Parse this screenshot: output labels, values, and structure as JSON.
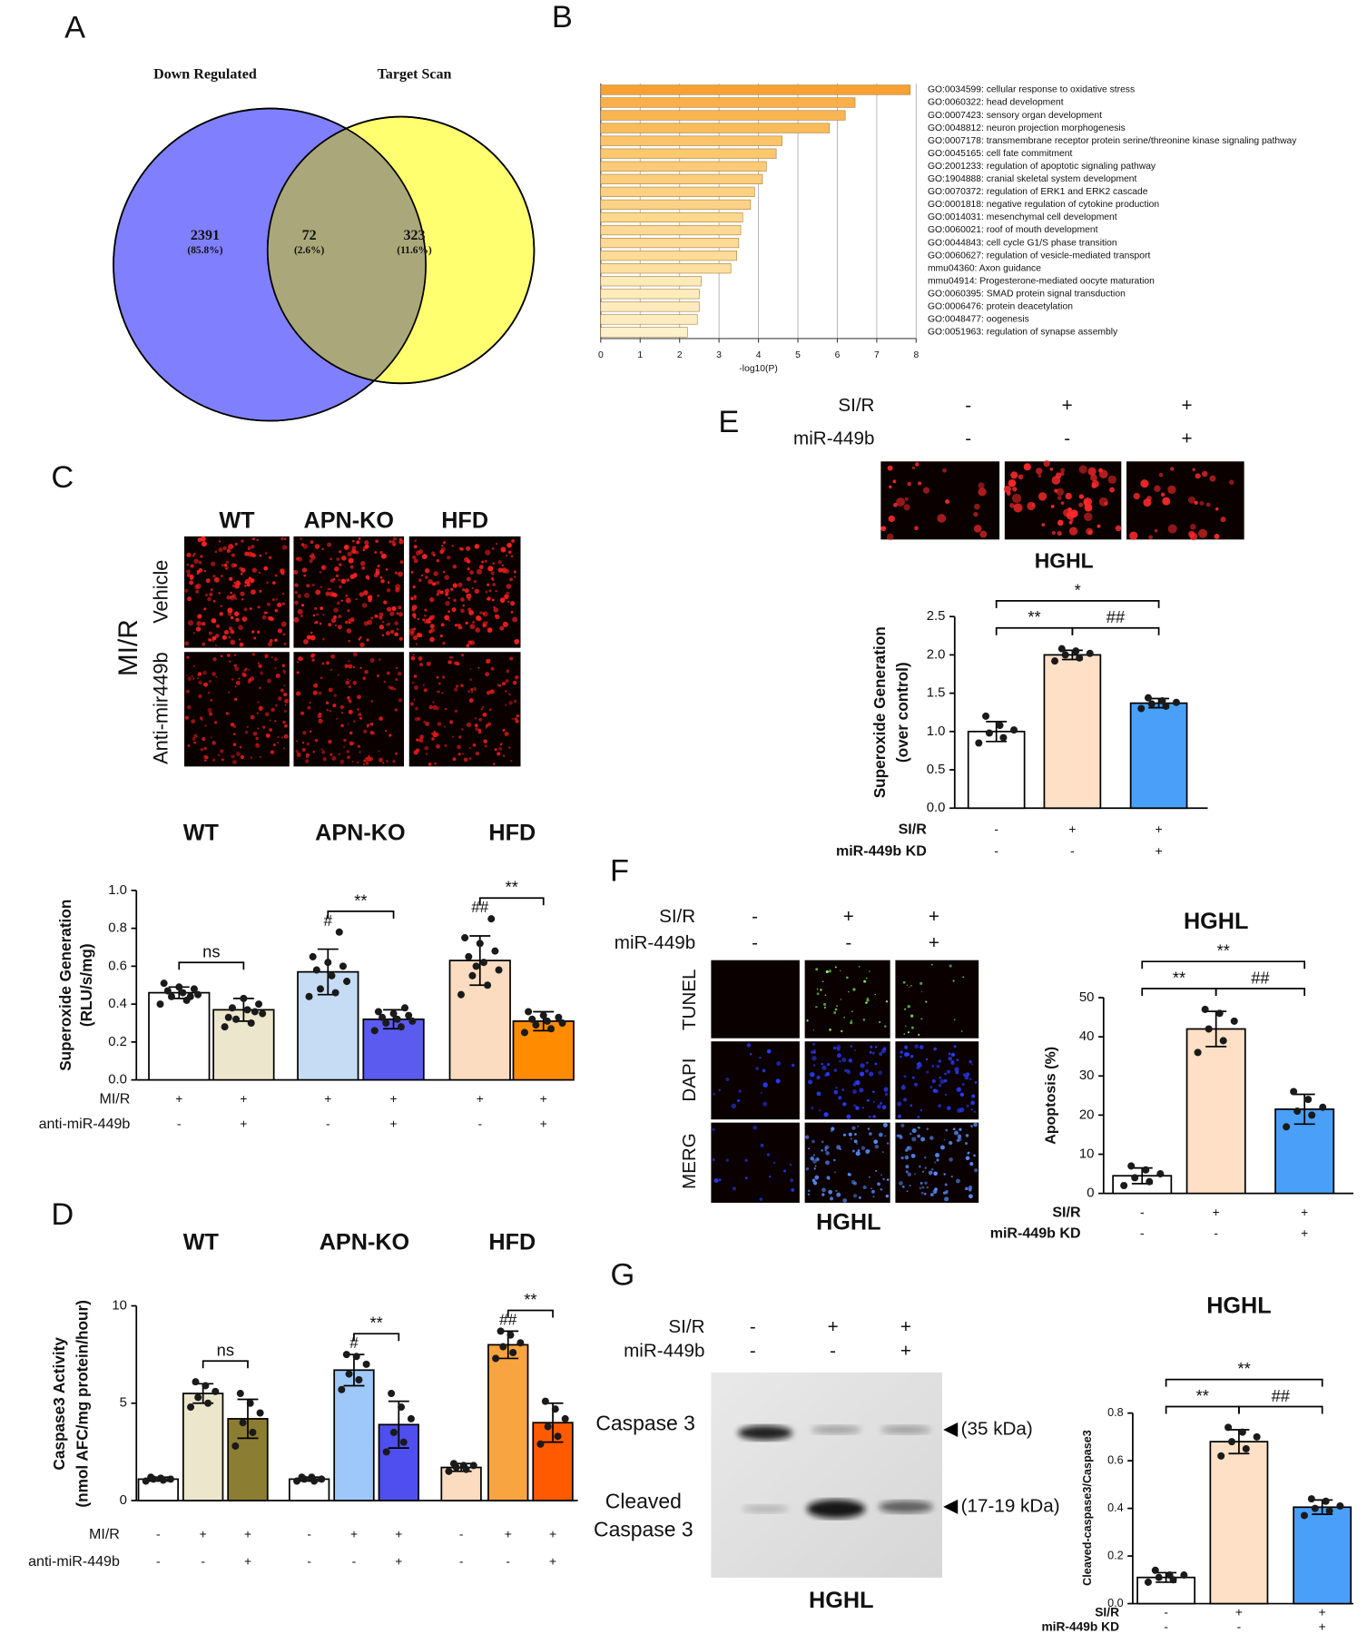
{
  "panel_labels": [
    "A",
    "B",
    "C",
    "D",
    "E",
    "F",
    "G"
  ],
  "chart_data": [
    {
      "type": "venn",
      "sets": [
        {
          "name": "Down Regulated",
          "color": "#8080ff"
        },
        {
          "name": "Target Scan",
          "color": "#ffff70"
        }
      ],
      "intersection_color": "#aaa77a",
      "counts": [
        2391,
        72,
        323
      ],
      "percents": [
        85.8,
        2.6,
        11.6
      ],
      "percent_labels": [
        "(85.8%)",
        "(2.6%)",
        "(11.6%)"
      ]
    },
    {
      "type": "barh",
      "xlabel": "-log10(P)",
      "categories": [
        "GO:0034599: cellular response to oxidative stress",
        "GO:0060322: head development",
        "GO:0007423: sensory organ development",
        "GO:0048812: neuron projection morphogenesis",
        "GO:0007178: transmembrane receptor protein serine/threonine kinase signaling pathway",
        "GO:0045165: cell fate commitment",
        "GO:2001233: regulation of apoptotic signaling pathway",
        "GO:1904888: cranial skeletal system development",
        "GO:0070372: regulation of ERK1 and ERK2 cascade",
        "GO:0001818: negative regulation of cytokine production",
        "GO:0014031: mesenchymal cell development",
        "GO:0060021: roof of mouth development",
        "GO:0044843: cell cycle G1/S phase transition",
        "GO:0060627: regulation of vesicle-mediated transport",
        "mmu04360: Axon guidance",
        "mmu04914: Progesterone-mediated oocyte maturation",
        "GO:0060395: SMAD protein signal transduction",
        "GO:0006476: protein deacetylation",
        "GO:0048477: oogenesis",
        "GO:0051963: regulation of synapse assembly"
      ],
      "values": [
        7.85,
        6.45,
        6.2,
        5.8,
        4.6,
        4.45,
        4.2,
        4.1,
        3.9,
        3.8,
        3.6,
        3.55,
        3.5,
        3.45,
        3.3,
        2.55,
        2.5,
        2.5,
        2.45,
        2.2
      ],
      "colors": [
        "#f7a034",
        "#f9b04a",
        "#f9b552",
        "#fabb5c",
        "#fbc46a",
        "#fbc76f",
        "#fbcb77",
        "#fccd7b",
        "#fcd182",
        "#fcd386",
        "#fdd88f",
        "#fdd993",
        "#fdda96",
        "#fddc99",
        "#fde09f",
        "#fee9b8",
        "#feebbc",
        "#feebbd",
        "#feecc0",
        "#fff1cc"
      ],
      "xlim": [
        0,
        8
      ],
      "xticks": [
        0,
        1,
        2,
        3,
        4,
        5,
        6,
        7,
        8
      ],
      "grid": true
    },
    {
      "type": "bar",
      "groups": [
        "WT",
        "APN-KO",
        "HFD"
      ],
      "ylabel": [
        "Superoxide Generation",
        "(RLU/s/mg)"
      ],
      "values": [
        0.46,
        0.37,
        0.57,
        0.32,
        0.63,
        0.31
      ],
      "errors": [
        0.03,
        0.06,
        0.12,
        0.05,
        0.13,
        0.05
      ],
      "colors": [
        "#ffffff",
        "#ece6cc",
        "#c6dcf5",
        "#5b5bef",
        "#fbdcc0",
        "#ff8c00"
      ],
      "points": [
        [
          0.4,
          0.42,
          0.44,
          0.45,
          0.46,
          0.47,
          0.48,
          0.49,
          0.51,
          0.44
        ],
        [
          0.28,
          0.3,
          0.32,
          0.35,
          0.37,
          0.38,
          0.4,
          0.43,
          0.33,
          0.36
        ],
        [
          0.44,
          0.46,
          0.48,
          0.52,
          0.55,
          0.58,
          0.6,
          0.62,
          0.65,
          0.78
        ],
        [
          0.26,
          0.28,
          0.3,
          0.31,
          0.32,
          0.33,
          0.34,
          0.35,
          0.36,
          0.38
        ],
        [
          0.45,
          0.5,
          0.55,
          0.58,
          0.62,
          0.65,
          0.68,
          0.72,
          0.75,
          0.85,
          0.6
        ],
        [
          0.25,
          0.27,
          0.29,
          0.3,
          0.31,
          0.32,
          0.33,
          0.34,
          0.36
        ]
      ],
      "bar_marks": [
        null,
        null,
        "#",
        null,
        "##",
        null
      ],
      "annotations": [
        {
          "text": "ns",
          "from": 0,
          "to": 1
        },
        {
          "text": "**",
          "from": 2,
          "to": 3
        },
        {
          "text": "**",
          "from": 4,
          "to": 5
        }
      ],
      "conditions": [
        {
          "name": "MI/R",
          "marks": [
            "+",
            "+",
            "+",
            "+",
            "+",
            "+"
          ]
        },
        {
          "name": "anti-miR-449b",
          "marks": [
            "-",
            "+",
            "-",
            "+",
            "-",
            "+"
          ]
        }
      ],
      "ylim": [
        0,
        1
      ],
      "yticks": [
        {
          "value": 0,
          "label": "0.0"
        },
        0.2,
        0.4,
        0.6,
        0.8,
        {
          "value": 1,
          "label": "1.0"
        }
      ]
    },
    {
      "type": "bar",
      "groups": [
        "WT",
        "APN-KO",
        "HFD"
      ],
      "ylabel": [
        "Caspase3 Activity",
        "(nmol AFC/mg protein/hour)"
      ],
      "values": [
        1.1,
        5.5,
        4.2,
        1.1,
        6.7,
        3.9,
        1.7,
        8.0,
        4.0
      ],
      "errors": [
        0.1,
        0.5,
        1.0,
        0.1,
        0.8,
        1.2,
        0.2,
        0.7,
        1.0
      ],
      "colors": [
        "#ffffff",
        "#ece6cc",
        "#8b7d32",
        "#ffffff",
        "#9ec8fa",
        "#4f4fef",
        "#fbdcc0",
        "#f8a440",
        "#ff5a00"
      ],
      "points": [
        [
          1.0,
          1.05,
          1.1,
          1.1,
          1.15,
          1.2
        ],
        [
          4.8,
          5.0,
          5.3,
          5.6,
          5.9,
          6.1
        ],
        [
          2.8,
          3.5,
          4.0,
          4.5,
          5.0,
          5.5
        ],
        [
          1.0,
          1.0,
          1.1,
          1.1,
          1.2,
          1.2
        ],
        [
          5.7,
          6.2,
          6.5,
          7.0,
          7.4,
          7.5
        ],
        [
          2.5,
          3.0,
          3.5,
          4.2,
          4.8,
          5.5
        ],
        [
          1.5,
          1.6,
          1.7,
          1.8,
          1.8,
          1.9
        ],
        [
          7.3,
          7.6,
          7.9,
          8.1,
          8.5,
          8.7
        ],
        [
          2.9,
          3.3,
          3.8,
          4.2,
          4.7,
          5.1
        ]
      ],
      "bar_marks": [
        null,
        null,
        null,
        null,
        "#",
        null,
        null,
        "##",
        null
      ],
      "annotations": [
        {
          "text": "ns",
          "from": 1,
          "to": 2
        },
        {
          "text": "**",
          "from": 4,
          "to": 5
        },
        {
          "text": "**",
          "from": 7,
          "to": 8
        }
      ],
      "conditions": [
        {
          "name": "MI/R",
          "marks": [
            "-",
            "+",
            "+",
            "-",
            "+",
            "+",
            "-",
            "+",
            "+"
          ]
        },
        {
          "name": "anti-miR-449b",
          "marks": [
            "-",
            "-",
            "+",
            "-",
            "-",
            "+",
            "-",
            "-",
            "+"
          ]
        }
      ],
      "ylim": [
        0,
        10
      ],
      "yticks": [
        0,
        5,
        10
      ]
    },
    {
      "type": "bar",
      "ylabel": [
        "Superoxide Generation",
        "(over control)"
      ],
      "values": [
        1.0,
        2.0,
        1.37
      ],
      "errors": [
        0.13,
        0.06,
        0.06
      ],
      "colors": [
        "#ffffff",
        "#fde0c5",
        "#4aa0f8"
      ],
      "points": [
        [
          0.85,
          0.92,
          0.98,
          1.02,
          1.08,
          1.2
        ],
        [
          1.92,
          1.96,
          2.0,
          2.02,
          2.05,
          2.08
        ],
        [
          1.3,
          1.33,
          1.36,
          1.38,
          1.4,
          1.44
        ]
      ],
      "annotations": [
        {
          "text": "**",
          "from": 0,
          "to": 1
        },
        {
          "text": "##",
          "from": 1,
          "to": 2
        },
        {
          "text": "*",
          "from": 0,
          "to": 2
        }
      ],
      "conditions": [
        {
          "name": "SI/R",
          "marks": [
            "-",
            "+",
            "+"
          ]
        },
        {
          "name": "miR-449b KD",
          "marks": [
            "-",
            "-",
            "+"
          ]
        }
      ],
      "ylim": [
        0,
        2.5
      ],
      "yticks": [
        {
          "value": 0,
          "label": "0.0"
        },
        0.5,
        {
          "value": 1,
          "label": "1.0"
        },
        1.5,
        {
          "value": 2,
          "label": "2.0"
        },
        2.5
      ]
    },
    {
      "type": "bar",
      "title": "HGHL",
      "ylabel": [
        "Apoptosis (%)"
      ],
      "values": [
        4.5,
        42,
        21.5
      ],
      "errors": [
        2,
        4.5,
        3.8
      ],
      "colors": [
        "#ffffff",
        "#fde0c5",
        "#4aa0f8"
      ],
      "points": [
        [
          2,
          3,
          4,
          5,
          6,
          7
        ],
        [
          36,
          39,
          42,
          44,
          46,
          47
        ],
        [
          17,
          20,
          21,
          22,
          24,
          26
        ]
      ],
      "annotations": [
        {
          "text": "**",
          "from": 0,
          "to": 1
        },
        {
          "text": "##",
          "from": 1,
          "to": 2
        },
        {
          "text": "**",
          "from": 0,
          "to": 2
        }
      ],
      "conditions": [
        {
          "name": "SI/R",
          "marks": [
            "-",
            "+",
            "+"
          ]
        },
        {
          "name": "miR-449b KD",
          "marks": [
            "-",
            "-",
            "+"
          ]
        }
      ],
      "ylim": [
        0,
        50
      ],
      "yticks": [
        0,
        10,
        20,
        30,
        40,
        50
      ]
    },
    {
      "type": "bar",
      "title": "HGHL",
      "ylabel": [
        "Cleaved-caspase3/Caspase3"
      ],
      "values": [
        0.11,
        0.68,
        0.405
      ],
      "errors": [
        0.02,
        0.05,
        0.03
      ],
      "colors": [
        "#ffffff",
        "#fde0c5",
        "#4aa0f8"
      ],
      "points": [
        [
          0.09,
          0.1,
          0.11,
          0.12,
          0.12,
          0.14
        ],
        [
          0.62,
          0.65,
          0.68,
          0.7,
          0.72,
          0.74
        ],
        [
          0.37,
          0.39,
          0.4,
          0.41,
          0.43,
          0.44
        ]
      ],
      "annotations": [
        {
          "text": "**",
          "from": 0,
          "to": 1
        },
        {
          "text": "##",
          "from": 1,
          "to": 2
        },
        {
          "text": "**",
          "from": 0,
          "to": 2
        }
      ],
      "conditions": [
        {
          "name": "SI/R",
          "marks": [
            "-",
            "+",
            "+"
          ]
        },
        {
          "name": "miR-449b KD",
          "marks": [
            "-",
            "-",
            "+"
          ]
        }
      ],
      "ylim": [
        0,
        0.8
      ],
      "yticks": [
        {
          "value": 0,
          "label": "0.0"
        },
        0.2,
        0.4,
        0.6,
        0.8
      ]
    }
  ],
  "image_panels": {
    "C": {
      "columns": [
        "WT",
        "APN-KO",
        "HFD"
      ],
      "rows": [
        "Vehicle",
        "Anti-mir449b"
      ],
      "side": "MI/R"
    },
    "E": {
      "conditions": [
        {
          "name": "SI/R",
          "marks": [
            "-",
            "+",
            "+"
          ]
        },
        {
          "name": "miR-449b",
          "marks": [
            "-",
            "-",
            "+"
          ]
        }
      ],
      "caption": "HGHL"
    },
    "F": {
      "conditions": [
        {
          "name": "SI/R",
          "marks": [
            "-",
            "+",
            "+"
          ]
        },
        {
          "name": "miR-449b",
          "marks": [
            "-",
            "-",
            "+"
          ]
        }
      ],
      "rows": [
        "TUNEL",
        "DAPI",
        "MERG"
      ],
      "caption": "HGHL"
    },
    "G": {
      "conditions": [
        {
          "name": "SI/R",
          "marks": [
            "-",
            "+",
            "+"
          ]
        },
        {
          "name": "miR-449b",
          "marks": [
            "-",
            "-",
            "+"
          ]
        }
      ],
      "bands": [
        {
          "name": [
            "Caspase 3"
          ],
          "size": "(35 kDa)"
        },
        {
          "name": [
            "Cleaved",
            "Caspase 3"
          ],
          "size": "(17-19 kDa)"
        }
      ],
      "caption": "HGHL"
    }
  }
}
